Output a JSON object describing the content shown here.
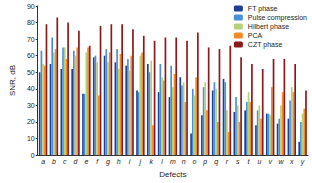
{
  "chart_data": {
    "type": "bar",
    "x_label": "Defects",
    "y_label": "SNR, dB",
    "categories": [
      "a",
      "b",
      "c",
      "d",
      "e",
      "f",
      "g",
      "h",
      "i",
      "j",
      "k",
      "l",
      "m",
      "n",
      "o",
      "p",
      "q",
      "r",
      "s",
      "t",
      "u",
      "v",
      "w",
      "x",
      "y"
    ],
    "series": [
      {
        "name": "FT phase",
        "color": "#1f3f8f",
        "values": [
          50,
          55,
          52,
          52,
          37,
          59,
          60,
          56,
          54,
          39,
          55,
          38,
          35,
          47,
          13,
          24,
          39,
          46,
          26,
          27,
          18,
          25,
          19,
          22,
          8
        ]
      },
      {
        "name": "Pulse compression",
        "color": "#4a90d9",
        "values": [
          63,
          71,
          65,
          63,
          37,
          60,
          64,
          64,
          58,
          38,
          50,
          55,
          54,
          42,
          40,
          41,
          44,
          44,
          35,
          32,
          27,
          25,
          22,
          33,
          20
        ]
      },
      {
        "name": "Hilbert phase",
        "color": "#b5d178",
        "values": [
          55,
          62,
          65,
          60,
          62,
          56,
          56,
          52,
          51,
          60,
          57,
          47,
          41,
          44,
          36,
          44,
          40,
          27,
          30,
          38,
          30,
          24,
          30,
          41,
          25
        ]
      },
      {
        "name": "PCA",
        "color": "#f08c2a",
        "values": [
          54,
          64,
          58,
          65,
          65,
          36,
          62,
          61,
          60,
          62,
          18,
          45,
          49,
          32,
          47,
          27,
          20,
          14,
          20,
          32,
          22,
          41,
          38,
          38,
          28
        ]
      },
      {
        "name": "CZT phase",
        "color": "#8b1a1a",
        "values": [
          79,
          83,
          80,
          75,
          66,
          78,
          79,
          79,
          76,
          72,
          69,
          71,
          71,
          69,
          74,
          65,
          64,
          66,
          59,
          55,
          52,
          58,
          58,
          55,
          39
        ]
      }
    ],
    "ylim": [
      0,
      90
    ],
    "yticks": [
      0,
      10,
      20,
      30,
      40,
      50,
      60,
      70,
      80,
      90
    ],
    "grid": false,
    "legend": "top-right"
  }
}
